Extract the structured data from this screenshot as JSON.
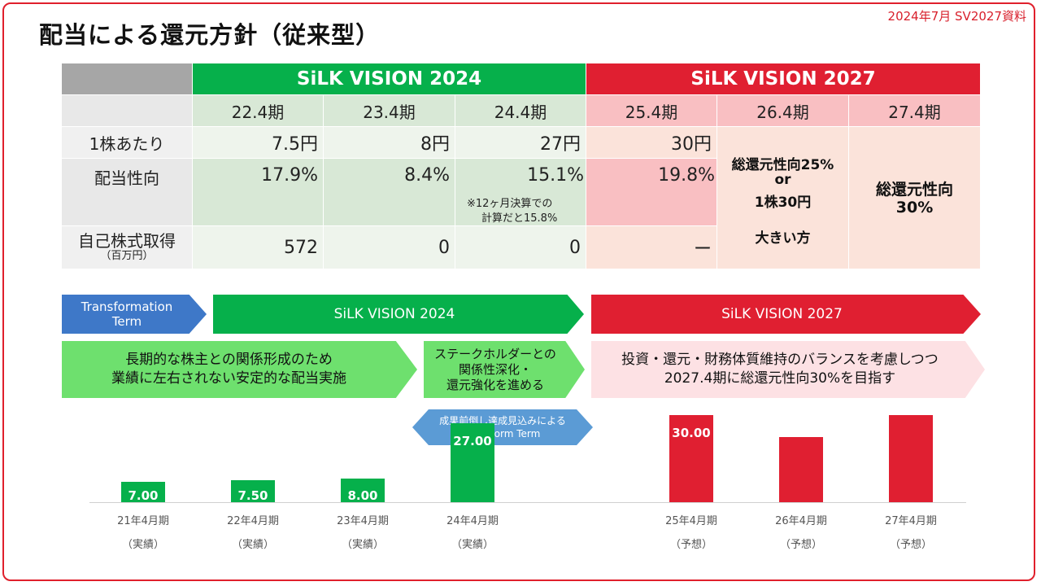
{
  "doc_label": "2024年7月 SV2027資料",
  "title": "配当による還元方針（従来型）",
  "table": {
    "sv2024_header": "SiLK VISION 2024",
    "sv2027_header": "SiLK VISION 2027",
    "periods": [
      "22.4期",
      "23.4期",
      "24.4期",
      "25.4期",
      "26.4期",
      "27.4期"
    ],
    "row_labels": {
      "per_share": "1株あたり",
      "payout": "配当性向",
      "buyback": "自己株式取得",
      "buyback_unit": "（百万円）"
    },
    "per_share": [
      "7.5円",
      "8円",
      "27円",
      "30円"
    ],
    "payout": [
      "17.9%",
      "8.4%",
      "15.1%",
      "19.8%"
    ],
    "payout_note_line1": "※12ヶ月決算での",
    "payout_note_line2": "計算だと15.8%",
    "buyback": [
      "572",
      "0",
      "0",
      "ー"
    ],
    "col26": {
      "line1": "総還元性向25%",
      "line2": "or",
      "line3": "1株30円",
      "line4": "大きい方"
    },
    "col27": {
      "line1": "総還元性向",
      "line2": "30%"
    }
  },
  "timeline": {
    "transformation_line1": "Transformation",
    "transformation_line2": "Term",
    "sv2024": "SiLK VISION 2024",
    "sv2027": "SiLK VISION 2027",
    "policy1_line1": "長期的な株主との関係形成のため",
    "policy1_line2": "業績に左右されない安定的な配当実施",
    "policy2_line1": "ステークホルダーとの",
    "policy2_line2": "関係性深化・",
    "policy2_line3": "還元強化を進める",
    "policy3_line1": "投資・還元・財務体質維持のバランスを考慮しつつ",
    "policy3_line2": "2027.4期に総還元性向30%を目指す",
    "transform_note_line1": "成果前倒し達成見込みによる",
    "transform_note_line2": "Transform Term"
  },
  "colors": {
    "green": "#06b04b",
    "red": "#e01f31",
    "light_green": "#d8e8d6",
    "light_pink": "#fbe3da",
    "pink": "#f9bfc2"
  },
  "chart_data": {
    "type": "bar",
    "categories": [
      "21年4月期",
      "22年4月期",
      "23年4月期",
      "24年4月期",
      "25年4月期",
      "26年4月期",
      "27年4月期"
    ],
    "category_notes": [
      "（実績）",
      "（実績）",
      "（実績）",
      "（実績）",
      "（予想）",
      "（予想）",
      "（予想）"
    ],
    "values": [
      7.0,
      7.5,
      8.0,
      27.0,
      30.0,
      null,
      null
    ],
    "value_labels": [
      "7.00",
      "7.50",
      "8.00",
      "27.00",
      "30.00",
      "",
      ""
    ],
    "bar_colors": [
      "#06b04b",
      "#06b04b",
      "#06b04b",
      "#06b04b",
      "#e01f31",
      "#e01f31",
      "#e01f31"
    ],
    "ylim": [
      0,
      59
    ]
  }
}
